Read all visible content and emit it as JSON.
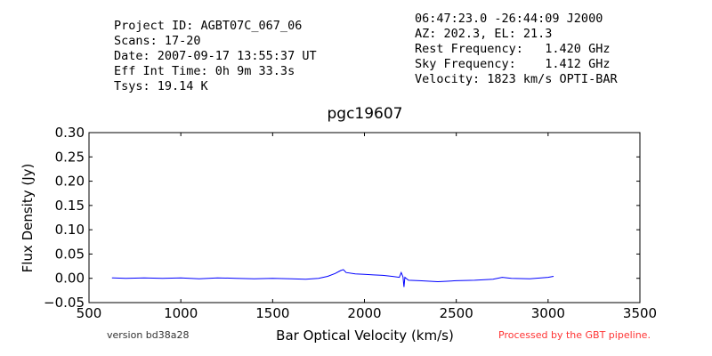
{
  "header_left": {
    "project": "Project ID: AGBT07C_067_06",
    "scans": "Scans: 17-20",
    "date": "Date: 2007-09-17 13:55:37 UT",
    "eff_int_time": "Eff Int Time: 0h 9m 33.3s",
    "tsys": "Tsys: 19.14 K"
  },
  "header_right": {
    "coords": "06:47:23.0 -26:44:09 J2000",
    "az_el": "AZ: 202.3, EL: 21.3",
    "rest_freq": "Rest Frequency:   1.420 GHz",
    "sky_freq": "Sky Frequency:    1.412 GHz",
    "velocity": "Velocity: 1823 km/s OPTI-BAR"
  },
  "footer": {
    "version": "version bd38a28",
    "processed": "Processed by the GBT pipeline."
  },
  "colors": {
    "line": "#0000ff",
    "footer_note": "#ff3333"
  },
  "chart_data": {
    "type": "line",
    "title": "pgc19607",
    "xlabel": "Bar Optical Velocity (km/s)",
    "ylabel": "Flux Density (Jy)",
    "xlim": [
      500,
      3500
    ],
    "ylim": [
      -0.05,
      0.3
    ],
    "xticks": [
      500,
      1000,
      1500,
      2000,
      2500,
      3000,
      3500
    ],
    "xtick_labels": [
      "500",
      "1000",
      "1500",
      "2000",
      "2500",
      "3000",
      "3500"
    ],
    "yticks": [
      -0.05,
      0.0,
      0.05,
      0.1,
      0.15,
      0.2,
      0.25,
      0.3
    ],
    "ytick_labels": [
      "−0.05",
      "0.00",
      "0.05",
      "0.10",
      "0.15",
      "0.20",
      "0.25",
      "0.30"
    ],
    "grid": false,
    "series": [
      {
        "x": [
          625,
          700,
          800,
          900,
          1000,
          1100,
          1200,
          1300,
          1400,
          1500,
          1600,
          1680,
          1750,
          1800,
          1840,
          1870,
          1885,
          1900,
          1950,
          2000,
          2050,
          2100,
          2150,
          2190,
          2200,
          2210,
          2215,
          2220,
          2240,
          2300,
          2400,
          2450,
          2500,
          2600,
          2700,
          2750,
          2800,
          2900,
          3000,
          3030
        ],
        "y": [
          0.001,
          0.0,
          0.001,
          0.0,
          0.001,
          -0.001,
          0.001,
          0.0,
          -0.001,
          0.0,
          -0.001,
          -0.002,
          0.0,
          0.004,
          0.01,
          0.016,
          0.018,
          0.012,
          0.009,
          0.008,
          0.007,
          0.006,
          0.004,
          0.002,
          0.012,
          0.003,
          -0.018,
          0.002,
          -0.004,
          -0.005,
          -0.007,
          -0.006,
          -0.005,
          -0.004,
          -0.002,
          0.002,
          0.0,
          -0.001,
          0.002,
          0.004
        ]
      }
    ]
  }
}
